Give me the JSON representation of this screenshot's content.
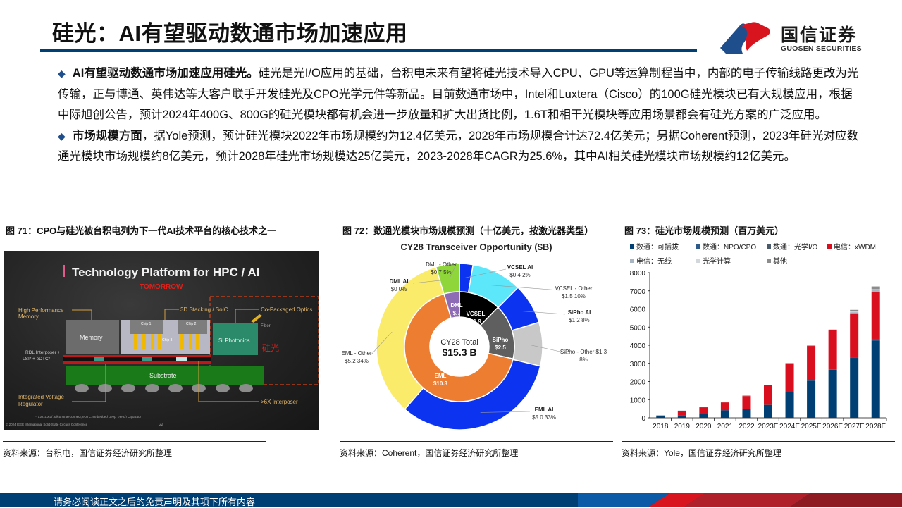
{
  "header": {
    "title": "硅光：AI有望驱动数通市场加速应用",
    "logo_cn": "国信证券",
    "logo_en": "GUOSEN SECURITIES"
  },
  "body": {
    "bullets": [
      {
        "lead": "AI有望驱动数通市场加速应用硅光。",
        "text": "硅光是光I/O应用的基础，台积电未来有望将硅光技术导入CPU、GPU等运算制程当中，内部的电子传输线路更改为光传输，正与博通、英伟达等大客户联手开发硅光及CPO光学元件等新品。目前数通市场中，Intel和Luxtera（Cisco）的100G硅光模块已有大规模应用，根据中际旭创公告，预计2024年400G、800G的硅光模块都有机会进一步放量和扩大出货比例，1.6T和相干光模块等应用场景都会有硅光方案的广泛应用。"
      },
      {
        "lead": "市场规模方面",
        "text": "，据Yole预测，预计硅光模块2022年市场规模约为12.4亿美元，2028年市场规模合计达72.4亿美元；另据Coherent预测，2023年硅光对应数通光模块市场规模约8亿美元，预计2028年硅光市场规模达25亿美元，2023-2028年CAGR为25.6%，其中AI相关硅光模块市场规模约12亿美元。"
      }
    ]
  },
  "figures": {
    "fig71": {
      "title": "图 71：CPO与硅光被台积电列为下一代AI技术平台的核心技术之一",
      "source": "资料来源：台积电，国信证券经济研究所整理",
      "image": {
        "heading": "Technology Platform for HPC / AI",
        "subheading": "TOMORROW",
        "labels": {
          "hbm": "High Performance Memory",
          "stacking": "3D Stacking / SoIC",
          "cpo": "Co-Packaged Optics",
          "fiber": "Fiber",
          "memory": "Memory",
          "chip1": "Chip 1",
          "chip2": "Chip 2",
          "chip3": "Chip 3",
          "siph": "Si Photonics",
          "siph_cn": "硅光",
          "rdl": "RDL Interposer + LSI* + eDTC*",
          "substrate": "Substrate",
          "ivr": "Integrated Voltage Regulator",
          "interposer": ">6X Interposer",
          "footnote": "*: LSI: Local Silicon Interconnect; eDTC: embedded Deep Trench Capacitor",
          "copyright": "© 2024 IEEE International Solid-State Circuits Conference",
          "page": "22"
        }
      }
    },
    "fig72": {
      "title": "图 72：数通光模块市场规模预测（十亿美元，按激光器类型）",
      "source": "资料来源：Coherent，国信证券经济研究所整理"
    },
    "fig73": {
      "title": "图 73：硅光市场规模预测（百万美元）",
      "source": "资料来源：Yole，国信证券经济研究所整理"
    }
  },
  "chart_data": [
    {
      "type": "pie",
      "title": "CY28 Transceiver Opportunity ($B)",
      "center_label": "CY28 Total",
      "center_value": "$15.3 B",
      "inner_ring": [
        {
          "name": "DML",
          "value": 0.7,
          "label": "$.7",
          "color": "#8e6bb5"
        },
        {
          "name": "VCSEL",
          "value": 1.9,
          "label": "$1.9",
          "color": "#000000"
        },
        {
          "name": "SiPho",
          "value": 2.5,
          "label": "$2.5",
          "color": "#5f5f5f"
        },
        {
          "name": "EML",
          "value": 10.3,
          "label": "$10.3",
          "color": "#ed7d31"
        }
      ],
      "outer_ring": [
        {
          "name": "VCSEL AI",
          "value": 0.4,
          "pct": "2%",
          "label": "$0.4",
          "color": "#0b33f0"
        },
        {
          "name": "VCSEL - Other",
          "value": 1.5,
          "pct": "10%",
          "label": "$1.5",
          "color": "#5ce8fa"
        },
        {
          "name": "SiPho AI",
          "value": 1.2,
          "pct": "8%",
          "label": "$1.2",
          "color": "#0b33f0"
        },
        {
          "name": "SiPho - Other",
          "value": 1.3,
          "pct": "8%",
          "label": "$1.3",
          "color": "#c8c8c8"
        },
        {
          "name": "EML AI",
          "value": 5.0,
          "pct": "33%",
          "label": "$5.0",
          "color": "#0b33f0"
        },
        {
          "name": "EML - Other",
          "value": 5.2,
          "pct": "34%",
          "label": "$5.2",
          "color": "#fbeb6a"
        },
        {
          "name": "DML AI",
          "value": 0,
          "pct": "0%",
          "label": "$0",
          "color": "#0b33f0"
        },
        {
          "name": "DML - Other",
          "value": 0.7,
          "pct": "5%",
          "label": "$0.7",
          "color": "#8fd63a"
        }
      ]
    },
    {
      "type": "bar",
      "stacked": true,
      "title": "硅光市场规模预测（百万美元）",
      "xlabel": "",
      "ylabel": "",
      "ylim": [
        0,
        8000
      ],
      "yticks": [
        0,
        1000,
        2000,
        3000,
        4000,
        5000,
        6000,
        7000,
        8000
      ],
      "grid": false,
      "legend_position": "top",
      "categories": [
        "2018",
        "2019",
        "2020",
        "2021",
        "2022",
        "2023E",
        "2024E",
        "2025E",
        "2026E",
        "2027E",
        "2028E"
      ],
      "series": [
        {
          "name": "数通：可插拔",
          "color": "#003f73",
          "values": [
            120,
            130,
            230,
            420,
            500,
            700,
            1400,
            2050,
            2650,
            3300,
            4250
          ]
        },
        {
          "name": "数通：NPO/CPO",
          "color": "#2e5a8a",
          "values": [
            0,
            0,
            0,
            0,
            0,
            0,
            0,
            0,
            0,
            20,
            40
          ]
        },
        {
          "name": "数通：光学I/O",
          "color": "#4a5a6a",
          "values": [
            0,
            0,
            0,
            0,
            0,
            20,
            20,
            30,
            30,
            40,
            60
          ]
        },
        {
          "name": "电信：xWDM",
          "color": "#d90f1f",
          "values": [
            0,
            250,
            350,
            430,
            700,
            1080,
            1580,
            1880,
            2140,
            2400,
            2600
          ]
        },
        {
          "name": "电信：无线",
          "color": "#a9b4c2",
          "values": [
            30,
            20,
            20,
            30,
            40,
            20,
            30,
            40,
            50,
            60,
            80
          ]
        },
        {
          "name": "光学计算",
          "color": "#d3d7dc",
          "values": [
            0,
            0,
            0,
            0,
            0,
            0,
            0,
            0,
            0,
            40,
            60
          ]
        },
        {
          "name": "其他",
          "color": "#8c8c8c",
          "values": [
            0,
            0,
            0,
            0,
            0,
            0,
            0,
            0,
            0,
            90,
            150
          ]
        }
      ]
    }
  ],
  "footer": {
    "disclaimer": "请务必阅读正文之后的免责声明及其项下所有内容"
  }
}
